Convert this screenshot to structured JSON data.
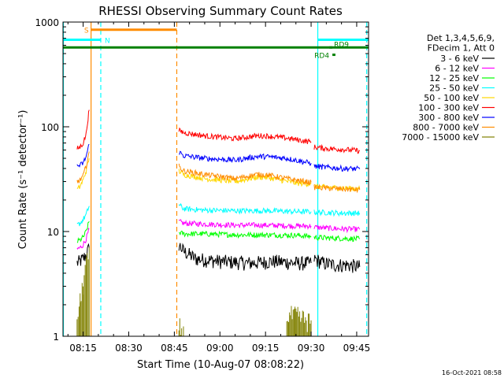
{
  "chart_data": {
    "type": "line",
    "title": "RHESSI Observing Summary Count Rates",
    "xlabel": "Start Time (10-Aug-07 08:08:22)",
    "ylabel": "Count Rate (s⁻¹ detector⁻¹)",
    "yscale": "log",
    "ylim": [
      1,
      1000
    ],
    "xlim_minutes": [
      488.37,
      588.9
    ],
    "x_ticks": [
      {
        "label": "08:15",
        "min": 495
      },
      {
        "label": "08:30",
        "min": 510
      },
      {
        "label": "08:45",
        "min": 525
      },
      {
        "label": "09:00",
        "min": 540
      },
      {
        "label": "09:15",
        "min": 555
      },
      {
        "label": "09:30",
        "min": 570
      },
      {
        "label": "09:45",
        "min": 585
      }
    ],
    "y_ticks": [
      {
        "label": "1",
        "v": 1
      },
      {
        "label": "10",
        "v": 10
      },
      {
        "label": "100",
        "v": 100
      },
      {
        "label": "1000",
        "v": 1000
      }
    ],
    "legend": {
      "position": "right",
      "header": [
        "Det 1,3,4,5,6,9,",
        "FDecim 1, Att 0"
      ]
    },
    "series": [
      {
        "name": "3 - 6 keV",
        "color": "#000000",
        "segments": [
          [
            [
              493,
              5.0
            ],
            [
              494,
              5.2
            ],
            [
              495,
              5.5
            ],
            [
              496,
              6.0
            ],
            [
              497,
              7.0
            ]
          ],
          [
            [
              526.5,
              7.5
            ],
            [
              528,
              6.5
            ],
            [
              532,
              5.5
            ],
            [
              540,
              5.2
            ],
            [
              550,
              5.0
            ],
            [
              558,
              5.2
            ],
            [
              565,
              5.0
            ],
            [
              570,
              5.0
            ]
          ],
          [
            [
              571,
              5.5
            ],
            [
              574,
              5.0
            ],
            [
              578,
              4.8
            ],
            [
              582,
              4.8
            ],
            [
              586,
              4.6
            ]
          ]
        ]
      },
      {
        "name": "6 - 12 keV",
        "color": "#ff00ff",
        "segments": [
          [
            [
              493,
              6.8
            ],
            [
              494,
              7.0
            ],
            [
              495,
              7.5
            ],
            [
              496,
              8.5
            ],
            [
              497,
              10.5
            ]
          ],
          [
            [
              526.5,
              12.5
            ],
            [
              528,
              12.0
            ],
            [
              535,
              11.8
            ],
            [
              545,
              11.5
            ],
            [
              555,
              11.5
            ],
            [
              565,
              11.3
            ],
            [
              570,
              11.3
            ]
          ],
          [
            [
              571,
              11.0
            ],
            [
              575,
              10.8
            ],
            [
              580,
              10.6
            ],
            [
              586,
              10.5
            ]
          ]
        ]
      },
      {
        "name": "12 - 25 keV",
        "color": "#00ff00",
        "segments": [
          [
            [
              493,
              8.0
            ],
            [
              494,
              8.3
            ],
            [
              495,
              8.8
            ],
            [
              496,
              10.0
            ],
            [
              497,
              12.5
            ]
          ],
          [
            [
              526.5,
              9.8
            ],
            [
              528,
              9.5
            ],
            [
              535,
              9.5
            ],
            [
              545,
              9.3
            ],
            [
              555,
              9.3
            ],
            [
              565,
              9.2
            ],
            [
              570,
              9.0
            ]
          ],
          [
            [
              571,
              8.8
            ],
            [
              575,
              8.7
            ],
            [
              580,
              8.6
            ],
            [
              586,
              8.5
            ]
          ]
        ]
      },
      {
        "name": "25 - 50 keV",
        "color": "#00ffff",
        "segments": [
          [
            [
              493,
              11.5
            ],
            [
              494,
              12.0
            ],
            [
              495,
              13.0
            ],
            [
              496,
              14.5
            ],
            [
              497,
              17.5
            ]
          ],
          [
            [
              526.5,
              18.0
            ],
            [
              528,
              16.5
            ],
            [
              535,
              16.0
            ],
            [
              545,
              15.8
            ],
            [
              555,
              15.8
            ],
            [
              565,
              15.5
            ],
            [
              570,
              15.5
            ]
          ],
          [
            [
              571,
              15.3
            ],
            [
              575,
              15.2
            ],
            [
              580,
              15.0
            ],
            [
              586,
              15.0
            ]
          ]
        ]
      },
      {
        "name": "50 - 100 keV",
        "color": "#ffd700",
        "segments": [
          [
            [
              493,
              25.0
            ],
            [
              494,
              27.0
            ],
            [
              495,
              31.0
            ],
            [
              496,
              38.0
            ],
            [
              497,
              50.0
            ]
          ],
          [
            [
              526.5,
              38.0
            ],
            [
              528,
              35.0
            ],
            [
              535,
              32.0
            ],
            [
              545,
              30.0
            ],
            [
              552,
              33.0
            ],
            [
              555,
              33.0
            ],
            [
              560,
              31.0
            ],
            [
              565,
              29.0
            ],
            [
              570,
              28.5
            ]
          ],
          [
            [
              571,
              27.0
            ],
            [
              575,
              26.5
            ],
            [
              580,
              26.0
            ],
            [
              586,
              25.5
            ]
          ]
        ]
      },
      {
        "name": "100 - 300 keV",
        "color": "#ff0000",
        "segments": [
          [
            [
              493,
              62.0
            ],
            [
              494,
              64.0
            ],
            [
              495,
              70.0
            ],
            [
              496,
              85.0
            ],
            [
              497,
              145.0
            ]
          ],
          [
            [
              526.5,
              92.0
            ],
            [
              528,
              88.0
            ],
            [
              535,
              82.0
            ],
            [
              545,
              77.0
            ],
            [
              552,
              82.0
            ],
            [
              555,
              82.0
            ],
            [
              562,
              78.0
            ],
            [
              568,
              73.0
            ],
            [
              570,
              72.0
            ]
          ],
          [
            [
              571,
              64.0
            ],
            [
              575,
              62.0
            ],
            [
              580,
              61.0
            ],
            [
              586,
              59.0
            ]
          ]
        ]
      },
      {
        "name": "300 - 800 keV",
        "color": "#0000ff",
        "segments": [
          [
            [
              493,
              42.0
            ],
            [
              494,
              43.0
            ],
            [
              495,
              45.0
            ],
            [
              496,
              52.0
            ],
            [
              497,
              68.0
            ]
          ],
          [
            [
              526.5,
              58.0
            ],
            [
              528,
              53.0
            ],
            [
              535,
              50.0
            ],
            [
              545,
              48.0
            ],
            [
              552,
              52.0
            ],
            [
              555,
              52.0
            ],
            [
              562,
              50.0
            ],
            [
              568,
              46.0
            ],
            [
              570,
              45.0
            ]
          ],
          [
            [
              571,
              42.0
            ],
            [
              575,
              41.0
            ],
            [
              580,
              40.0
            ],
            [
              586,
              39.5
            ]
          ]
        ]
      },
      {
        "name": "800 - 7000 keV",
        "color": "#ff8c00",
        "segments": [
          [
            [
              493,
              30.0
            ],
            [
              494,
              31.0
            ],
            [
              495,
              34.0
            ],
            [
              496,
              42.0
            ],
            [
              497,
              58.0
            ]
          ],
          [
            [
              526.5,
              42.0
            ],
            [
              528,
              38.0
            ],
            [
              535,
              35.0
            ],
            [
              545,
              32.0
            ],
            [
              552,
              35.0
            ],
            [
              555,
              35.0
            ],
            [
              562,
              32.0
            ],
            [
              568,
              30.0
            ],
            [
              570,
              29.5
            ]
          ],
          [
            [
              571,
              26.5
            ],
            [
              575,
              26.0
            ],
            [
              580,
              25.5
            ],
            [
              586,
              25.0
            ]
          ]
        ]
      },
      {
        "name": "7000 - 15000 keV",
        "color": "#808000",
        "segments": [
          [
            [
              493,
              1.5
            ],
            [
              494,
              2.0
            ],
            [
              495,
              3.0
            ],
            [
              496,
              4.5
            ],
            [
              497,
              5.5
            ]
          ],
          [
            [
              526.5,
              1.2
            ],
            [
              528,
              1.0
            ]
          ],
          [
            [
              562,
              1.5
            ],
            [
              565,
              1.5
            ],
            [
              570,
              1.3
            ]
          ]
        ]
      }
    ],
    "flag_bars": [
      {
        "label": "S",
        "color": "#ff8c00",
        "x_start": 497.6,
        "x_end": 525.8,
        "y": 845
      },
      {
        "label": "N",
        "color": "#00ffff",
        "x_start": 488.37,
        "x_end": 500.8,
        "y": 678
      },
      {
        "label": "",
        "color": "#00ffff",
        "x_start": 572.2,
        "x_end": 588.9,
        "y": 678
      },
      {
        "label": "",
        "color": "#008000",
        "x_start": 488.37,
        "x_end": 588.9,
        "y": 572
      },
      {
        "label": "RD4",
        "color": "#008000",
        "x_start": 577.0,
        "x_end": 578.0,
        "y": 487
      },
      {
        "label": "RD9",
        "color": "#008000",
        "x_start": 576.0,
        "x_end": 577.0,
        "y": 572
      }
    ],
    "vlines": [
      {
        "min": 488.5,
        "color": "#00ffff",
        "style": "solid"
      },
      {
        "min": 497.6,
        "color": "#ff8c00",
        "style": "solid"
      },
      {
        "min": 500.8,
        "color": "#00ffff",
        "style": "dashed"
      },
      {
        "min": 525.8,
        "color": "#ff8c00",
        "style": "dashed"
      },
      {
        "min": 572.2,
        "color": "#00ffff",
        "style": "solid"
      },
      {
        "min": 588.3,
        "color": "#00ffff",
        "style": "dashed"
      }
    ],
    "grid": false
  },
  "footer": {
    "timestamp": "16-Oct-2021 08:58"
  }
}
